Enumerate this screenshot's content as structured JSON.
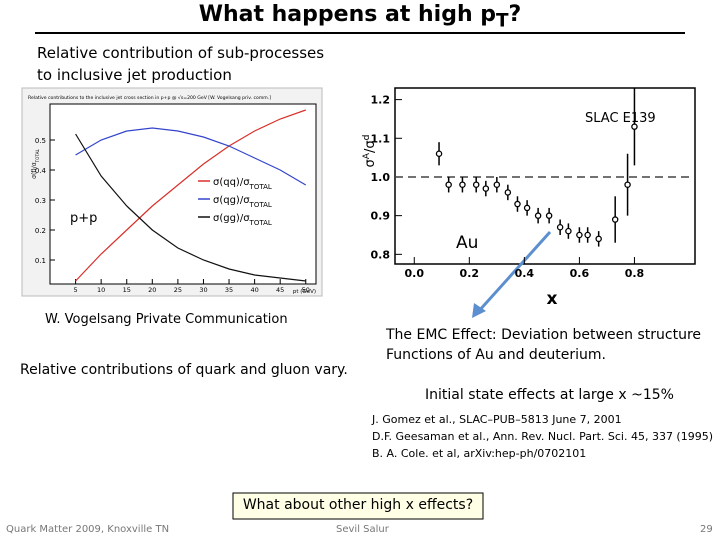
{
  "title": [
    {
      "text": "What happens at high p"
    },
    {
      "text": "T",
      "script": "sub"
    },
    {
      "text": "?"
    }
  ],
  "left_caption": [
    "Relative contribution of sub-processes",
    "to inclusive jet production"
  ],
  "left_plot": {
    "header": "Relative contributions to the inclusive jet cross section in p+p @ √s=200 GeV [W. Vogelsang priv. comm.]",
    "ylabel": [
      {
        "text": "σ(f)/σ"
      },
      {
        "text": "TOTAL",
        "script": "sub"
      }
    ],
    "xlabel": "pt (GeV)",
    "xlim": [
      0,
      52
    ],
    "ylim": [
      0.02,
      0.62
    ],
    "xticks": [
      5,
      10,
      15,
      20,
      25,
      30,
      35,
      40,
      45,
      50
    ],
    "yticks": [
      0.1,
      0.2,
      0.3,
      0.4,
      0.5
    ],
    "x": [
      5,
      10,
      15,
      20,
      25,
      30,
      35,
      40,
      45,
      50
    ],
    "series": [
      {
        "name": [
          {
            "text": "σ(qq)/σ"
          },
          {
            "text": "TOTAL",
            "script": "sub"
          }
        ],
        "color": "#d9302a",
        "values": [
          0.03,
          0.12,
          0.2,
          0.28,
          0.35,
          0.42,
          0.48,
          0.53,
          0.57,
          0.6
        ]
      },
      {
        "name": [
          {
            "text": "σ(qg)/σ"
          },
          {
            "text": "TOTAL",
            "script": "sub"
          }
        ],
        "color": "#3344cc",
        "values": [
          0.45,
          0.5,
          0.53,
          0.54,
          0.53,
          0.51,
          0.48,
          0.44,
          0.4,
          0.35
        ]
      },
      {
        "name": [
          {
            "text": "σ(gg)/σ"
          },
          {
            "text": "TOTAL",
            "script": "sub"
          }
        ],
        "color": "#111111",
        "values": [
          0.52,
          0.38,
          0.28,
          0.2,
          0.14,
          0.1,
          0.07,
          0.05,
          0.04,
          0.03
        ]
      }
    ],
    "annotation": "p+p"
  },
  "right_plot": {
    "ylabel": [
      {
        "text": "σ"
      },
      {
        "text": "A",
        "script": "sup"
      },
      {
        "text": "/σ"
      },
      {
        "text": "d",
        "script": "sup"
      }
    ],
    "xlabel": "x",
    "label": "SLAC E139",
    "target": "Au",
    "xlim": [
      -0.07,
      1.02
    ],
    "ylim": [
      0.775,
      1.23
    ],
    "xticks": [
      {
        "value": 0,
        "label": "0.0"
      },
      0.2,
      0.4,
      0.6,
      0.8
    ],
    "yticks": [
      0.8,
      0.9,
      {
        "value": 1,
        "label": "1.0"
      },
      1.1,
      1.2
    ],
    "reference_line": 1,
    "x": [
      0.09,
      0.125,
      0.175,
      0.225,
      0.26,
      0.3,
      0.34,
      0.375,
      0.41,
      0.45,
      0.49,
      0.53,
      0.56,
      0.6,
      0.63,
      0.67,
      0.73,
      0.775,
      0.8
    ],
    "values": [
      1.06,
      0.98,
      0.98,
      0.98,
      0.97,
      0.98,
      0.96,
      0.93,
      0.92,
      0.9,
      0.9,
      0.87,
      0.86,
      0.85,
      0.85,
      0.84,
      0.89,
      0.98,
      1.13
    ],
    "errors": [
      0.03,
      0.02,
      0.02,
      0.02,
      0.02,
      0.02,
      0.02,
      0.02,
      0.02,
      0.02,
      0.02,
      0.02,
      0.02,
      0.02,
      0.02,
      0.02,
      0.06,
      0.08,
      0.1
    ]
  },
  "source": "W. Vogelsang Private Communication",
  "left_note": "Relative contributions of quark and gluon vary.",
  "emc": [
    "The EMC Effect: Deviation between structure",
    "Functions of Au and deuterium."
  ],
  "initial_state": "Initial state effects at large x ~15%",
  "references": [
    "J. Gomez et al., SLAC–PUB–5813 June 7, 2001",
    "D.F. Geesaman et al., Ann. Rev. Nucl. Part. Sci. 45, 337 (1995)",
    "B. A. Cole. et al, arXiv:hep-ph/0702101"
  ],
  "question": "What about other high x effects?",
  "footer": {
    "left": "Quark Matter 2009, Knoxville TN",
    "center": "Sevil Salur",
    "right": "29"
  }
}
